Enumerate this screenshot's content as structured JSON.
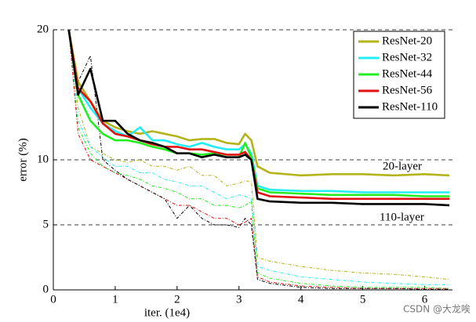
{
  "chart_data": {
    "type": "line",
    "xlabel": "iter. (1e4)",
    "ylabel": "error (%)",
    "x": [
      0.25,
      0.4,
      0.6,
      0.8,
      1.0,
      1.2,
      1.4,
      1.6,
      1.8,
      2.0,
      2.2,
      2.4,
      2.6,
      2.8,
      3.0,
      3.1,
      3.2,
      3.3,
      3.5,
      4.0,
      4.5,
      5.0,
      5.5,
      6.0,
      6.4
    ],
    "xlim": [
      0,
      6.45
    ],
    "xticks": [
      0,
      1,
      2,
      3,
      4,
      5,
      6
    ],
    "ylim": [
      0,
      20
    ],
    "yticks": [
      0,
      5,
      10,
      20
    ],
    "grid": true,
    "legend": "upper right",
    "series": [
      {
        "name": "ResNet-20",
        "color": "#b3b31a",
        "values": [
          20,
          16,
          14.5,
          13,
          12.5,
          12.2,
          12,
          12.2,
          12,
          11.8,
          11.5,
          11.6,
          11.6,
          11.3,
          11.2,
          12,
          11.5,
          9.5,
          9.0,
          8.8,
          8.9,
          8.9,
          8.8,
          8.9,
          8.8
        ],
        "train_values": [
          20,
          14,
          11,
          10.5,
          10,
          9.8,
          10,
          9.5,
          9.5,
          9.2,
          9.5,
          8.8,
          8.8,
          8.0,
          8.2,
          8.4,
          8.3,
          2.5,
          2.2,
          1.8,
          1.5,
          1.3,
          1.2,
          1.0,
          0.8
        ]
      },
      {
        "name": "ResNet-32",
        "color": "#22eef5",
        "values": [
          20,
          15.5,
          14,
          12.8,
          12.2,
          11.8,
          12.5,
          11.5,
          11.5,
          11.2,
          11,
          11.3,
          11,
          10.8,
          10.8,
          11.2,
          10.5,
          8.0,
          7.7,
          7.6,
          7.6,
          7.5,
          7.5,
          7.5,
          7.5
        ],
        "train_values": [
          20,
          13,
          11,
          10.2,
          9.5,
          9.5,
          9,
          9,
          8.5,
          8.3,
          8,
          8,
          7.5,
          7,
          7.3,
          7.2,
          7.0,
          1.8,
          1.5,
          1.0,
          0.8,
          0.6,
          0.5,
          0.4,
          0.4
        ]
      },
      {
        "name": "ResNet-44",
        "color": "#22ee22",
        "values": [
          20,
          15,
          13,
          12,
          11.5,
          11.5,
          11.3,
          11,
          10.8,
          10.5,
          10.5,
          10.4,
          10.5,
          10.2,
          10.2,
          11.3,
          10.2,
          7.8,
          7.5,
          7.4,
          7.3,
          7.3,
          7.3,
          7.2,
          7.2
        ],
        "train_values": [
          20,
          12.5,
          10.5,
          9.5,
          9,
          8.8,
          8.5,
          8,
          7.8,
          7.5,
          7,
          7,
          6.5,
          6.5,
          6.3,
          6.5,
          6.8,
          1.3,
          0.9,
          0.5,
          0.3,
          0.2,
          0.2,
          0.2,
          0.1
        ]
      },
      {
        "name": "ResNet-56",
        "color": "#e01010",
        "values": [
          20,
          15.5,
          14.5,
          12.8,
          12,
          11.8,
          11.5,
          11.2,
          11,
          11,
          10.8,
          10.8,
          10.6,
          10.4,
          10.4,
          10.6,
          10,
          7.5,
          7.2,
          7.1,
          7.0,
          7.0,
          7.0,
          7.0,
          7.0
        ],
        "train_values": [
          20,
          12,
          10,
          9.5,
          9,
          8.5,
          8,
          7.5,
          7,
          6.5,
          6.5,
          6,
          5.5,
          5.5,
          5,
          5.2,
          5.5,
          1,
          0.6,
          0.3,
          0.2,
          0.1,
          0.1,
          0.1,
          0.1
        ]
      },
      {
        "name": "ResNet-110",
        "color": "#000000",
        "values": [
          20,
          15,
          17,
          13,
          13,
          12,
          11.5,
          11.3,
          11,
          10.5,
          10.5,
          10.2,
          10.4,
          10.2,
          10.2,
          10.4,
          10,
          7,
          6.8,
          6.7,
          6.7,
          6.6,
          6.6,
          6.6,
          6.5
        ],
        "train_values": [
          20,
          16,
          18,
          10,
          9.2,
          8.5,
          8,
          7.5,
          7,
          5.5,
          6.5,
          5.5,
          5,
          5,
          4.8,
          5.5,
          5,
          0.8,
          0.5,
          0.2,
          0.1,
          0.1,
          0.1,
          0.05,
          0.05
        ]
      }
    ],
    "annotations": [
      "20-layer",
      "110-layer"
    ],
    "watermark": "CSDN @大龙唉"
  }
}
